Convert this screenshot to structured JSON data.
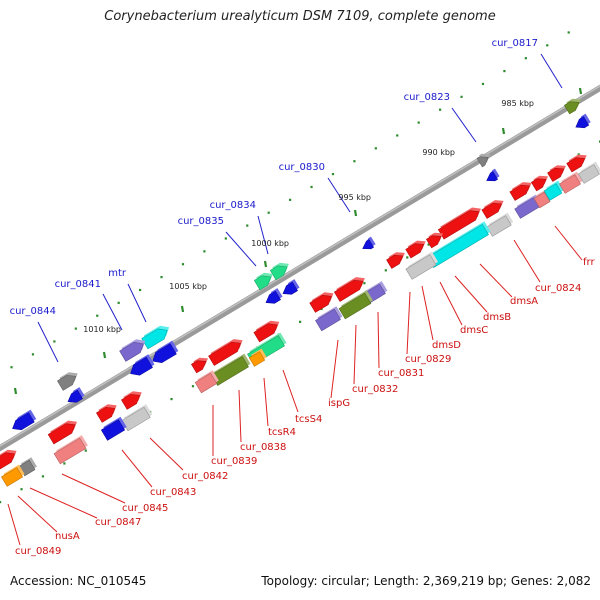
{
  "title": "Corynebacterium urealyticum DSM 7109, complete genome",
  "footer": {
    "accession": "Accession: NC_010545",
    "summary": "Topology: circular; Length: 2,369,219 bp; Genes: 2,082"
  },
  "colors": {
    "backbone": "#808080",
    "kbp_dot": "#2e8b2e",
    "label_blue": "#1a1acc",
    "label_red": "#cc1111",
    "line_blue": "#2222cc",
    "line_red": "#dd2222",
    "red": "#ee1111",
    "pink": "#f08080",
    "blue": "#1111dd",
    "cyan": "#00e5e5",
    "purple": "#7b68cc",
    "olive": "#6b8e23",
    "gray": "#808080",
    "lightgray": "#c8c8c8",
    "orange": "#ff9900",
    "green": "#22dd88"
  },
  "kbp_marks": [
    "985 kbp",
    "990 kbp",
    "995 kbp",
    "1000 kbp",
    "1005 kbp",
    "1010 kbp"
  ],
  "forward_labels": [
    "cur_0817",
    "cur_0823",
    "cur_0830",
    "cur_0834",
    "cur_0835",
    "mtr",
    "cur_0841",
    "cur_0844"
  ],
  "reverse_labels": [
    "frr",
    "cur_0824",
    "dmsA",
    "dmsB",
    "dmsC",
    "dmsD",
    "cur_0829",
    "cur_0831",
    "cur_0832",
    "ispG",
    "tcsS4",
    "tcsR4",
    "cur_0838",
    "cur_0839",
    "cur_0842",
    "cur_0843",
    "cur_0845",
    "cur_0847",
    "nusA",
    "cur_0849"
  ]
}
